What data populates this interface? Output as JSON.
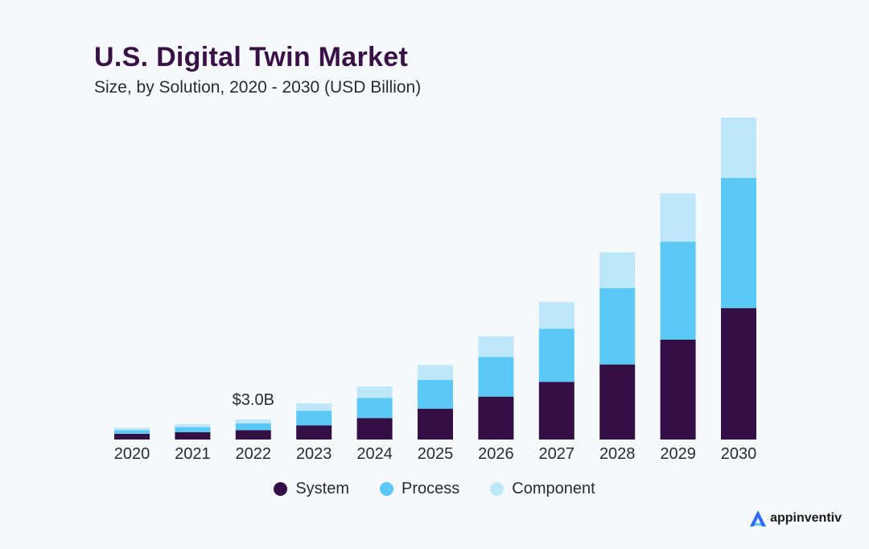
{
  "chart_data": {
    "type": "bar",
    "stacked": true,
    "title": "U.S. Digital Twin Market",
    "subtitle": "Size, by Solution, 2020 - 2030 (USD Billion)",
    "categories": [
      "2020",
      "2021",
      "2022",
      "2023",
      "2024",
      "2025",
      "2026",
      "2027",
      "2028",
      "2029",
      "2030"
    ],
    "series": [
      {
        "name": "System",
        "color": "#330f45",
        "values": [
          0.85,
          1.1,
          1.4,
          2.1,
          3.2,
          4.6,
          6.4,
          8.6,
          11.2,
          14.9,
          19.6
        ]
      },
      {
        "name": "Process",
        "color": "#5bc9f5",
        "values": [
          0.55,
          0.75,
          1.0,
          2.2,
          3.0,
          4.3,
          5.9,
          7.9,
          11.4,
          14.6,
          19.4
        ]
      },
      {
        "name": "Component",
        "color": "#bfe7fa",
        "values": [
          0.35,
          0.45,
          0.6,
          1.1,
          1.7,
          2.2,
          3.1,
          4.0,
          5.3,
          7.2,
          9.0
        ]
      }
    ],
    "annotations": [
      {
        "category": "2022",
        "text": "$3.0B"
      }
    ],
    "legend_position": "bottom-center",
    "grid": false,
    "ylim": [
      0,
      48
    ]
  },
  "brand": {
    "name": "appinventiv",
    "icon": "appinventiv-logo-icon"
  }
}
